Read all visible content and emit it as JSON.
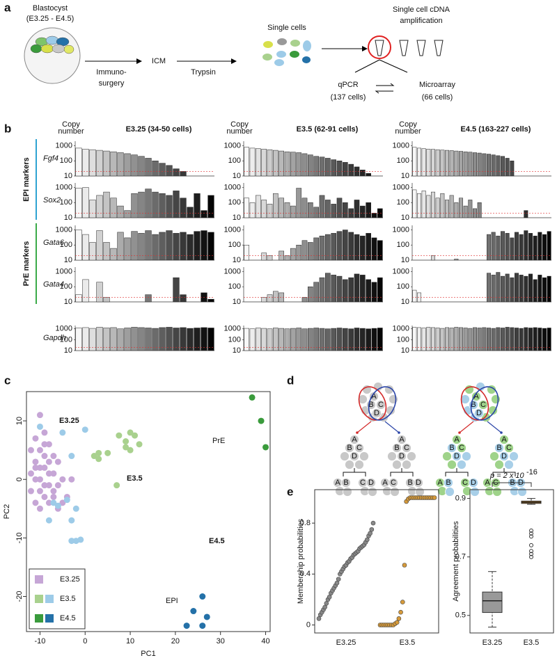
{
  "diagram_a": {
    "label": "a",
    "texts": [
      "Blastocyst",
      "(E3.25 - E4.5)",
      "Immuno-",
      "surgery",
      "ICM",
      "Trypsin",
      "Single cells",
      "Single cell cDNA",
      "amplification",
      "qPCR",
      "(137 cells)",
      "Microarray",
      "(66 cells)"
    ]
  },
  "diagram_d": {
    "label": "d",
    "letters": [
      "A",
      "B",
      "C",
      "D"
    ]
  },
  "chart_data": [
    {
      "type": "bar-grid",
      "label": "b",
      "y_label": [
        "Copy",
        "number"
      ],
      "log": true,
      "ylim": [
        10,
        2000
      ],
      "yticks": [
        10,
        100,
        1000
      ],
      "threshold": 20,
      "threshold_color": "#e03030",
      "genes": [
        "Fgf4",
        "Sox2",
        "Gata6",
        "Gata4",
        "Gapdh"
      ],
      "groups": [
        {
          "name": "EPI markers",
          "color": "#2ea3d1"
        },
        {
          "name": "PrE markers",
          "color": "#3aaa48"
        }
      ],
      "columns": [
        {
          "title": "E3.25 (34-50 cells)",
          "rows": [
            {
              "values": [
                700,
                600,
                550,
                500,
                450,
                400,
                350,
                300,
                250,
                200,
                150,
                100,
                70,
                50,
                30,
                20,
                10,
                10,
                10,
                10
              ]
            },
            {
              "values": [
                900,
                1000,
                150,
                300,
                500,
                200,
                60,
                30,
                400,
                500,
                800,
                500,
                400,
                300,
                600,
                200,
                50,
                400,
                30,
                300
              ]
            },
            {
              "values": [
                1000,
                500,
                150,
                900,
                150,
                60,
                700,
                300,
                800,
                600,
                900,
                500,
                700,
                900,
                600,
                700,
                500,
                800,
                900,
                700
              ]
            },
            {
              "values": [
                30,
                300,
                10,
                200,
                20,
                10,
                10,
                10,
                10,
                10,
                30,
                10,
                10,
                10,
                400,
                30,
                10,
                10,
                40,
                15
              ]
            },
            {
              "values": [
                1200,
                1300,
                1100,
                1400,
                1200,
                1300,
                1000,
                1200,
                1400,
                1300,
                1200,
                1100,
                1300,
                1400,
                1200,
                1300,
                1100,
                1200,
                1300,
                1200
              ]
            }
          ]
        },
        {
          "title": "E3.5 (62-91 cells)",
          "rows": [
            {
              "values": [
                800,
                700,
                650,
                600,
                550,
                500,
                450,
                400,
                380,
                350,
                300,
                250,
                200,
                180,
                150,
                120,
                100,
                80,
                60,
                40,
                25,
                15,
                10,
                10
              ]
            },
            {
              "values": [
                200,
                100,
                300,
                150,
                80,
                400,
                200,
                100,
                60,
                900,
                200,
                100,
                50,
                300,
                150,
                80,
                200,
                100,
                40,
                150,
                60,
                100,
                20,
                40
              ]
            },
            {
              "values": [
                100,
                10,
                10,
                30,
                20,
                10,
                40,
                20,
                60,
                100,
                200,
                150,
                300,
                400,
                500,
                600,
                800,
                1000,
                700,
                500,
                400,
                600,
                300,
                200
              ]
            },
            {
              "values": [
                10,
                10,
                10,
                20,
                30,
                50,
                40,
                10,
                10,
                10,
                20,
                100,
                200,
                400,
                800,
                600,
                500,
                300,
                400,
                700,
                600,
                300,
                200,
                400
              ]
            },
            {
              "values": [
                1100,
                1000,
                1200,
                1100,
                1000,
                1200,
                1100,
                1000,
                1100,
                1200,
                1000,
                1100,
                1200,
                1100,
                1000,
                1100,
                1200,
                1100,
                1000,
                1200,
                1100,
                1000,
                1100,
                1200
              ]
            }
          ]
        },
        {
          "title": "E4.5 (163-227 cells)",
          "rows": [
            {
              "values": [
                800,
                700,
                650,
                600,
                580,
                550,
                520,
                500,
                480,
                450,
                430,
                400,
                380,
                350,
                330,
                300,
                280,
                250,
                220,
                200,
                150,
                100,
                10,
                10,
                10,
                10,
                10,
                10,
                10,
                10
              ]
            },
            {
              "values": [
                700,
                400,
                600,
                300,
                500,
                200,
                400,
                150,
                300,
                100,
                200,
                60,
                150,
                40,
                100,
                10,
                10,
                10,
                10,
                10,
                10,
                10,
                10,
                10,
                30,
                10,
                10,
                10,
                10,
                10
              ]
            },
            {
              "values": [
                10,
                10,
                10,
                10,
                20,
                10,
                10,
                10,
                10,
                12,
                10,
                10,
                10,
                10,
                10,
                10,
                500,
                700,
                400,
                800,
                600,
                300,
                700,
                500,
                900,
                600,
                400,
                700,
                500,
                800
              ]
            },
            {
              "values": [
                60,
                40,
                10,
                10,
                10,
                10,
                10,
                10,
                10,
                10,
                10,
                10,
                10,
                10,
                10,
                10,
                800,
                600,
                900,
                500,
                700,
                400,
                800,
                600,
                500,
                700,
                300,
                600,
                400,
                500
              ]
            },
            {
              "values": [
                1400,
                1300,
                1200,
                1400,
                1300,
                1200,
                1100,
                1300,
                1200,
                1400,
                1300,
                1200,
                1100,
                1300,
                1200,
                1300,
                1200,
                1100,
                1300,
                1200,
                1400,
                1300,
                1200,
                1100,
                1300,
                1200,
                1300,
                1200,
                1100,
                1200
              ]
            }
          ]
        }
      ]
    },
    {
      "type": "scatter",
      "label": "c",
      "x_label": "PC1",
      "y_label": "PC2",
      "xlim": [
        -13,
        41
      ],
      "ylim": [
        -26,
        15
      ],
      "xticks": [
        -10,
        0,
        10,
        20,
        30,
        40
      ],
      "yticks": [
        -20,
        -10,
        0,
        10
      ],
      "annotations": [
        {
          "text": "E3.25"
        },
        {
          "text": "E3.5"
        },
        {
          "text": "E4.5"
        },
        {
          "text": "PrE",
          "color": "#3a9b3c"
        },
        {
          "text": "EPI",
          "color": "#2471a8"
        }
      ],
      "series": [
        {
          "name": "E3.25",
          "groups": [
            {
              "color": "#c6a6d6",
              "x": [
                -10,
                -9,
                -11,
                -8,
                -12,
                -10,
                -9,
                -7,
                -11,
                -8,
                -6,
                -10,
                -9,
                -12,
                -7,
                -8,
                -5,
                -10,
                -11,
                -9,
                -6,
                -8,
                -12,
                -7,
                -10,
                -4,
                -9,
                -11,
                -5,
                -8,
                -6,
                -10,
                -3,
                -7,
                -9,
                -11
              ],
              "y": [
                11,
                8,
                7,
                6,
                5,
                5,
                4,
                4,
                3,
                3,
                3,
                2,
                2,
                1,
                1,
                1,
                0,
                0,
                0,
                -1,
                -1,
                -1,
                -2,
                -2,
                -2,
                -3,
                -3,
                -4,
                -4,
                -4,
                -5,
                -5,
                0,
                -3,
                6,
                2
              ]
            }
          ]
        },
        {
          "name": "E3.5",
          "groups": [
            {
              "color": "#a9d18e",
              "x": [
                2,
                3,
                5,
                7.5,
                10,
                11,
                9,
                10,
                12,
                9,
                7,
                3
              ],
              "y": [
                4,
                4.5,
                4.5,
                7.5,
                8,
                7.5,
                5.5,
                5,
                6,
                6.5,
                -1,
                3.5
              ]
            },
            {
              "color": "#9dcbe8",
              "x": [
                -10,
                -5,
                0,
                -3,
                -7,
                -6,
                -4,
                -2,
                -3,
                -8,
                -3,
                -2,
                -1
              ],
              "y": [
                9,
                8,
                8.5,
                4,
                -4,
                -4.5,
                -3.5,
                -5,
                -7,
                -7,
                -10.5,
                -10.5,
                -10.3
              ]
            }
          ]
        },
        {
          "name": "E4.5",
          "groups": [
            {
              "color": "#3a9b3c",
              "x": [
                37,
                39,
                40
              ],
              "y": [
                14,
                10,
                5.5
              ]
            },
            {
              "color": "#2471a8",
              "x": [
                22.5,
                24,
                26,
                26,
                27
              ],
              "y": [
                -25,
                -22.5,
                -20,
                -25,
                -23.5
              ]
            }
          ]
        }
      ]
    },
    {
      "type": "strip",
      "label": "e",
      "y_label": "Membership probabilities",
      "categories": [
        "E3.25",
        "E3.5"
      ],
      "ylim": [
        -0.03,
        1.03
      ],
      "yticks": [
        0,
        0.4,
        0.8
      ],
      "series": [
        {
          "color": "#888888",
          "values": [
            0.05,
            0.08,
            0.1,
            0.12,
            0.14,
            0.17,
            0.2,
            0.22,
            0.25,
            0.27,
            0.29,
            0.31,
            0.33,
            0.36,
            0.4,
            0.42,
            0.44,
            0.46,
            0.47,
            0.49,
            0.5,
            0.52,
            0.53,
            0.55,
            0.56,
            0.57,
            0.58,
            0.6,
            0.61,
            0.62,
            0.63,
            0.65,
            0.67,
            0.7,
            0.72,
            0.75,
            0.8
          ]
        },
        {
          "color": "#d69a3a",
          "values": [
            0,
            0,
            0,
            0,
            0,
            0,
            0,
            0,
            0.01,
            0.02,
            0.05,
            0.1,
            0.18,
            0.47,
            0.97,
            0.99,
            1,
            1,
            1,
            1,
            1,
            1,
            1,
            1,
            1,
            1,
            1,
            1,
            1,
            1
          ]
        }
      ]
    },
    {
      "type": "box",
      "y_label": "Agreement probabilities",
      "categories": [
        "E3.25",
        "E3.5"
      ],
      "ylim": [
        0.44,
        0.93
      ],
      "yticks": [
        0.5,
        0.7,
        0.9
      ],
      "p_label": {
        "base": "p = 2 x 10",
        "exponent": "-16"
      },
      "boxes": [
        {
          "color": "#999999",
          "whisker_low": 0.46,
          "q1": 0.51,
          "median": 0.55,
          "q3": 0.58,
          "whisker_high": 0.65,
          "outliers": []
        },
        {
          "color": "#c8801f",
          "whisker_low": 0.88,
          "q1": 0.883,
          "median": 0.887,
          "q3": 0.891,
          "whisker_high": 0.9,
          "outliers": [
            0.7,
            0.71,
            0.72,
            0.74,
            0.77,
            0.78,
            0.79
          ]
        }
      ]
    }
  ]
}
